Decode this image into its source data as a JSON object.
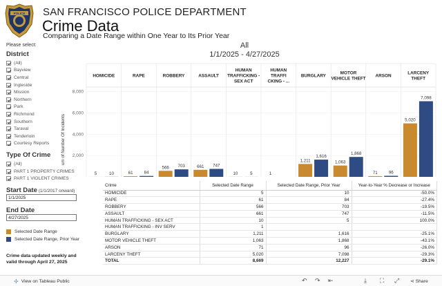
{
  "header": {
    "department": "SAN FRANCISCO POLICE DEPARTMENT",
    "title": "Crime Data",
    "subtitle": "Comparing a Date Range within One Year to Its Prior Year",
    "badge_text": "POLICE"
  },
  "sidebar": {
    "please_select": "Please select:",
    "district_title": "District",
    "districts": [
      "(All)",
      "Bayview",
      "Central",
      "Ingleside",
      "Mission",
      "Northern",
      "Park",
      "Richmond",
      "Southern",
      "Taraval",
      "Tenderloin",
      "Courtesy Reports"
    ],
    "crime_type_title": "Type Of Crime",
    "crime_types": [
      "(All)",
      "PART 1 PROPERTY CRIMES",
      "PART 1 VIOLENT CRIMES"
    ],
    "start_date_label": "Start Date",
    "start_date_hint": "(1/1/2017 onward)",
    "start_date_value": "1/1/2025",
    "end_date_label": "End Date",
    "end_date_value": "4/27/2025",
    "legend": [
      {
        "label": "Selected Date Range",
        "color": "#c8892f"
      },
      {
        "label": "Selected Date Range, Prior Year",
        "color": "#2f4b84"
      }
    ],
    "note_line1": "Crime data updated weekly and",
    "note_line2": "valid through April 27, 2025"
  },
  "view": {
    "district": "All",
    "date_range": "1/1/2025 - 4/27/2025"
  },
  "chart_data": {
    "type": "bar",
    "categories": [
      "HOMICIDE",
      "RAPE",
      "ROBBERY",
      "ASSAULT",
      "HUMAN TRAFFICKING - SEX ACT",
      "HUMAN TRAFFI CKING - ...",
      "BURGLARY",
      "MOTOR VEHICLE THEFT",
      "ARSON",
      "LARCENY THEFT"
    ],
    "category_lines": [
      [
        "HOMICIDE"
      ],
      [
        "RAPE"
      ],
      [
        "ROBBERY"
      ],
      [
        "ASSAULT"
      ],
      [
        "HUMAN",
        "TRAFFICKING -",
        "SEX ACT"
      ],
      [
        "HUMAN",
        "TRAFFI",
        "CKING - ..."
      ],
      [
        "BURGLARY"
      ],
      [
        "MOTOR",
        "VEHICLE THEFT"
      ],
      [
        "ARSON"
      ],
      [
        "LARCENY",
        "THEFT"
      ]
    ],
    "series": [
      {
        "name": "Selected Date Range",
        "color": "#c8892f",
        "values": [
          5,
          61,
          566,
          661,
          10,
          1,
          1211,
          1063,
          71,
          5020
        ],
        "labels": [
          "5",
          "61",
          "566",
          "661",
          "10",
          "1",
          "1,211",
          "1,063",
          "71",
          "5,020"
        ]
      },
      {
        "name": "Selected Date Range, Prior Year",
        "color": "#2f4b84",
        "values": [
          10,
          84,
          703,
          747,
          5,
          null,
          1616,
          1868,
          96,
          7098
        ],
        "labels": [
          "10",
          "84",
          "703",
          "747",
          "5",
          "",
          "1,616",
          "1,868",
          "96",
          "7,098"
        ]
      }
    ],
    "ylabel": "um of Number Of Incidents",
    "yticks": [
      2000,
      4000,
      6000,
      8000
    ],
    "ytick_labels": [
      "2,000",
      "4,000",
      "6,000",
      "8,000"
    ],
    "ylim": [
      0,
      8300
    ]
  },
  "table": {
    "headers": [
      "Crime",
      "Selected Date Range",
      "Selected Date Range, Prior Year",
      "Year-to-Year % Decrease or Increase"
    ],
    "rows": [
      [
        "HOMICIDE",
        "5",
        "10",
        "-50.0%"
      ],
      [
        "RAPE",
        "61",
        "84",
        "-27.4%"
      ],
      [
        "ROBBERY",
        "566",
        "703",
        "-19.5%"
      ],
      [
        "ASSAULT",
        "661",
        "747",
        "-11.5%"
      ],
      [
        "HUMAN TRAFFICKING - SEX ACT",
        "10",
        "5",
        "100.0%"
      ],
      [
        "HUMAN TRAFFICKING - INV SERV",
        "1",
        "",
        ""
      ],
      [
        "BURGLARY",
        "1,211",
        "1,616",
        "-25.1%"
      ],
      [
        "MOTOR VEHICLE THEFT",
        "1,063",
        "1,868",
        "-43.1%"
      ],
      [
        "ARSON",
        "71",
        "96",
        "-26.0%"
      ],
      [
        "LARCENY THEFT",
        "5,020",
        "7,098",
        "-29.3%"
      ]
    ],
    "total": [
      "TOTAL",
      "8,669",
      "12,227",
      "-29.1%"
    ]
  },
  "footer": {
    "tableau_link": "View on Tableau Public",
    "share_label": "Share",
    "icons": [
      "undo-icon",
      "redo-icon",
      "revert-icon",
      "download-icon",
      "fullscreen-icon",
      "share-icon"
    ]
  }
}
